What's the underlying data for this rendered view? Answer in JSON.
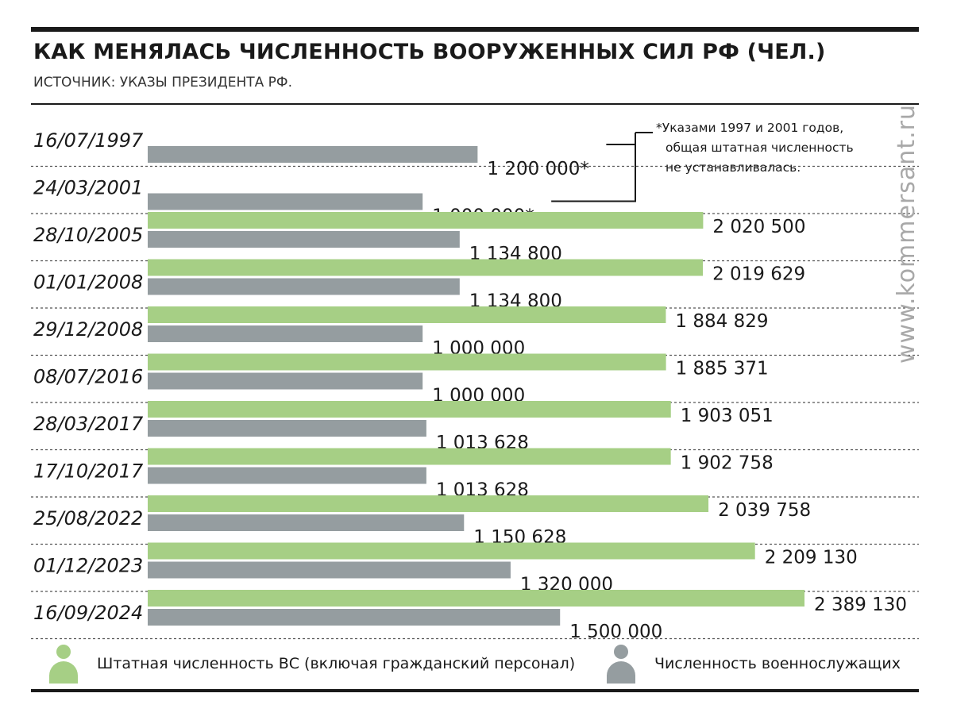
{
  "title": "КАК МЕНЯЛАСЬ ЧИСЛЕННОСТЬ ВООРУЖЕННЫХ СИЛ РФ (ЧЕЛ.)",
  "subtitle": "ИСТОЧНИК: УКАЗЫ ПРЕЗИДЕНТА РФ.",
  "watermark": "www.kommersant.ru",
  "note": {
    "lines": [
      "*Указами 1997 и 2001 годов,",
      "общая штатная численность",
      "не устанавливалась."
    ]
  },
  "colors": {
    "staff": "#a6cf85",
    "military": "#959da0",
    "text": "#1a1a1a"
  },
  "legend": {
    "staff": {
      "label": "Штатная численность ВС (включая гражданский персонал)",
      "icon": "person-icon"
    },
    "military": {
      "label": "Численность военнослужащих",
      "icon": "person-icon"
    }
  },
  "chart_data": {
    "type": "bar",
    "orientation": "horizontal",
    "categories": [
      "16/07/1997",
      "24/03/2001",
      "28/10/2005",
      "01/01/2008",
      "29/12/2008",
      "08/07/2016",
      "28/03/2017",
      "17/10/2017",
      "25/08/2022",
      "01/12/2023",
      "16/09/2024"
    ],
    "series": [
      {
        "name": "Штатная численность ВС (включая гражданский персонал)",
        "values": [
          null,
          null,
          2020500,
          2019629,
          1884829,
          1885371,
          1903051,
          1902758,
          2039758,
          2209130,
          2389130
        ],
        "labels": [
          "",
          "",
          "2 020 500",
          "2 019 629",
          "1 884 829",
          "1 885 371",
          "1 903 051",
          "1 902 758",
          "2 039 758",
          "2 209 130",
          "2 389 130"
        ]
      },
      {
        "name": "Численность военнослужащих",
        "values": [
          1200000,
          1000000,
          1134800,
          1134800,
          1000000,
          1000000,
          1013628,
          1013628,
          1150628,
          1320000,
          1500000
        ],
        "labels": [
          "1 200 000*",
          "1 000 000*",
          "1 134 800",
          "1 134 800",
          "1 000 000",
          "1 000 000",
          "1 013 628",
          "1 013 628",
          "1 150 628",
          "1 320 000",
          "1 500 000"
        ]
      }
    ],
    "xlim": [
      0,
      2389130
    ],
    "grid": false,
    "legend_position": "bottom"
  }
}
